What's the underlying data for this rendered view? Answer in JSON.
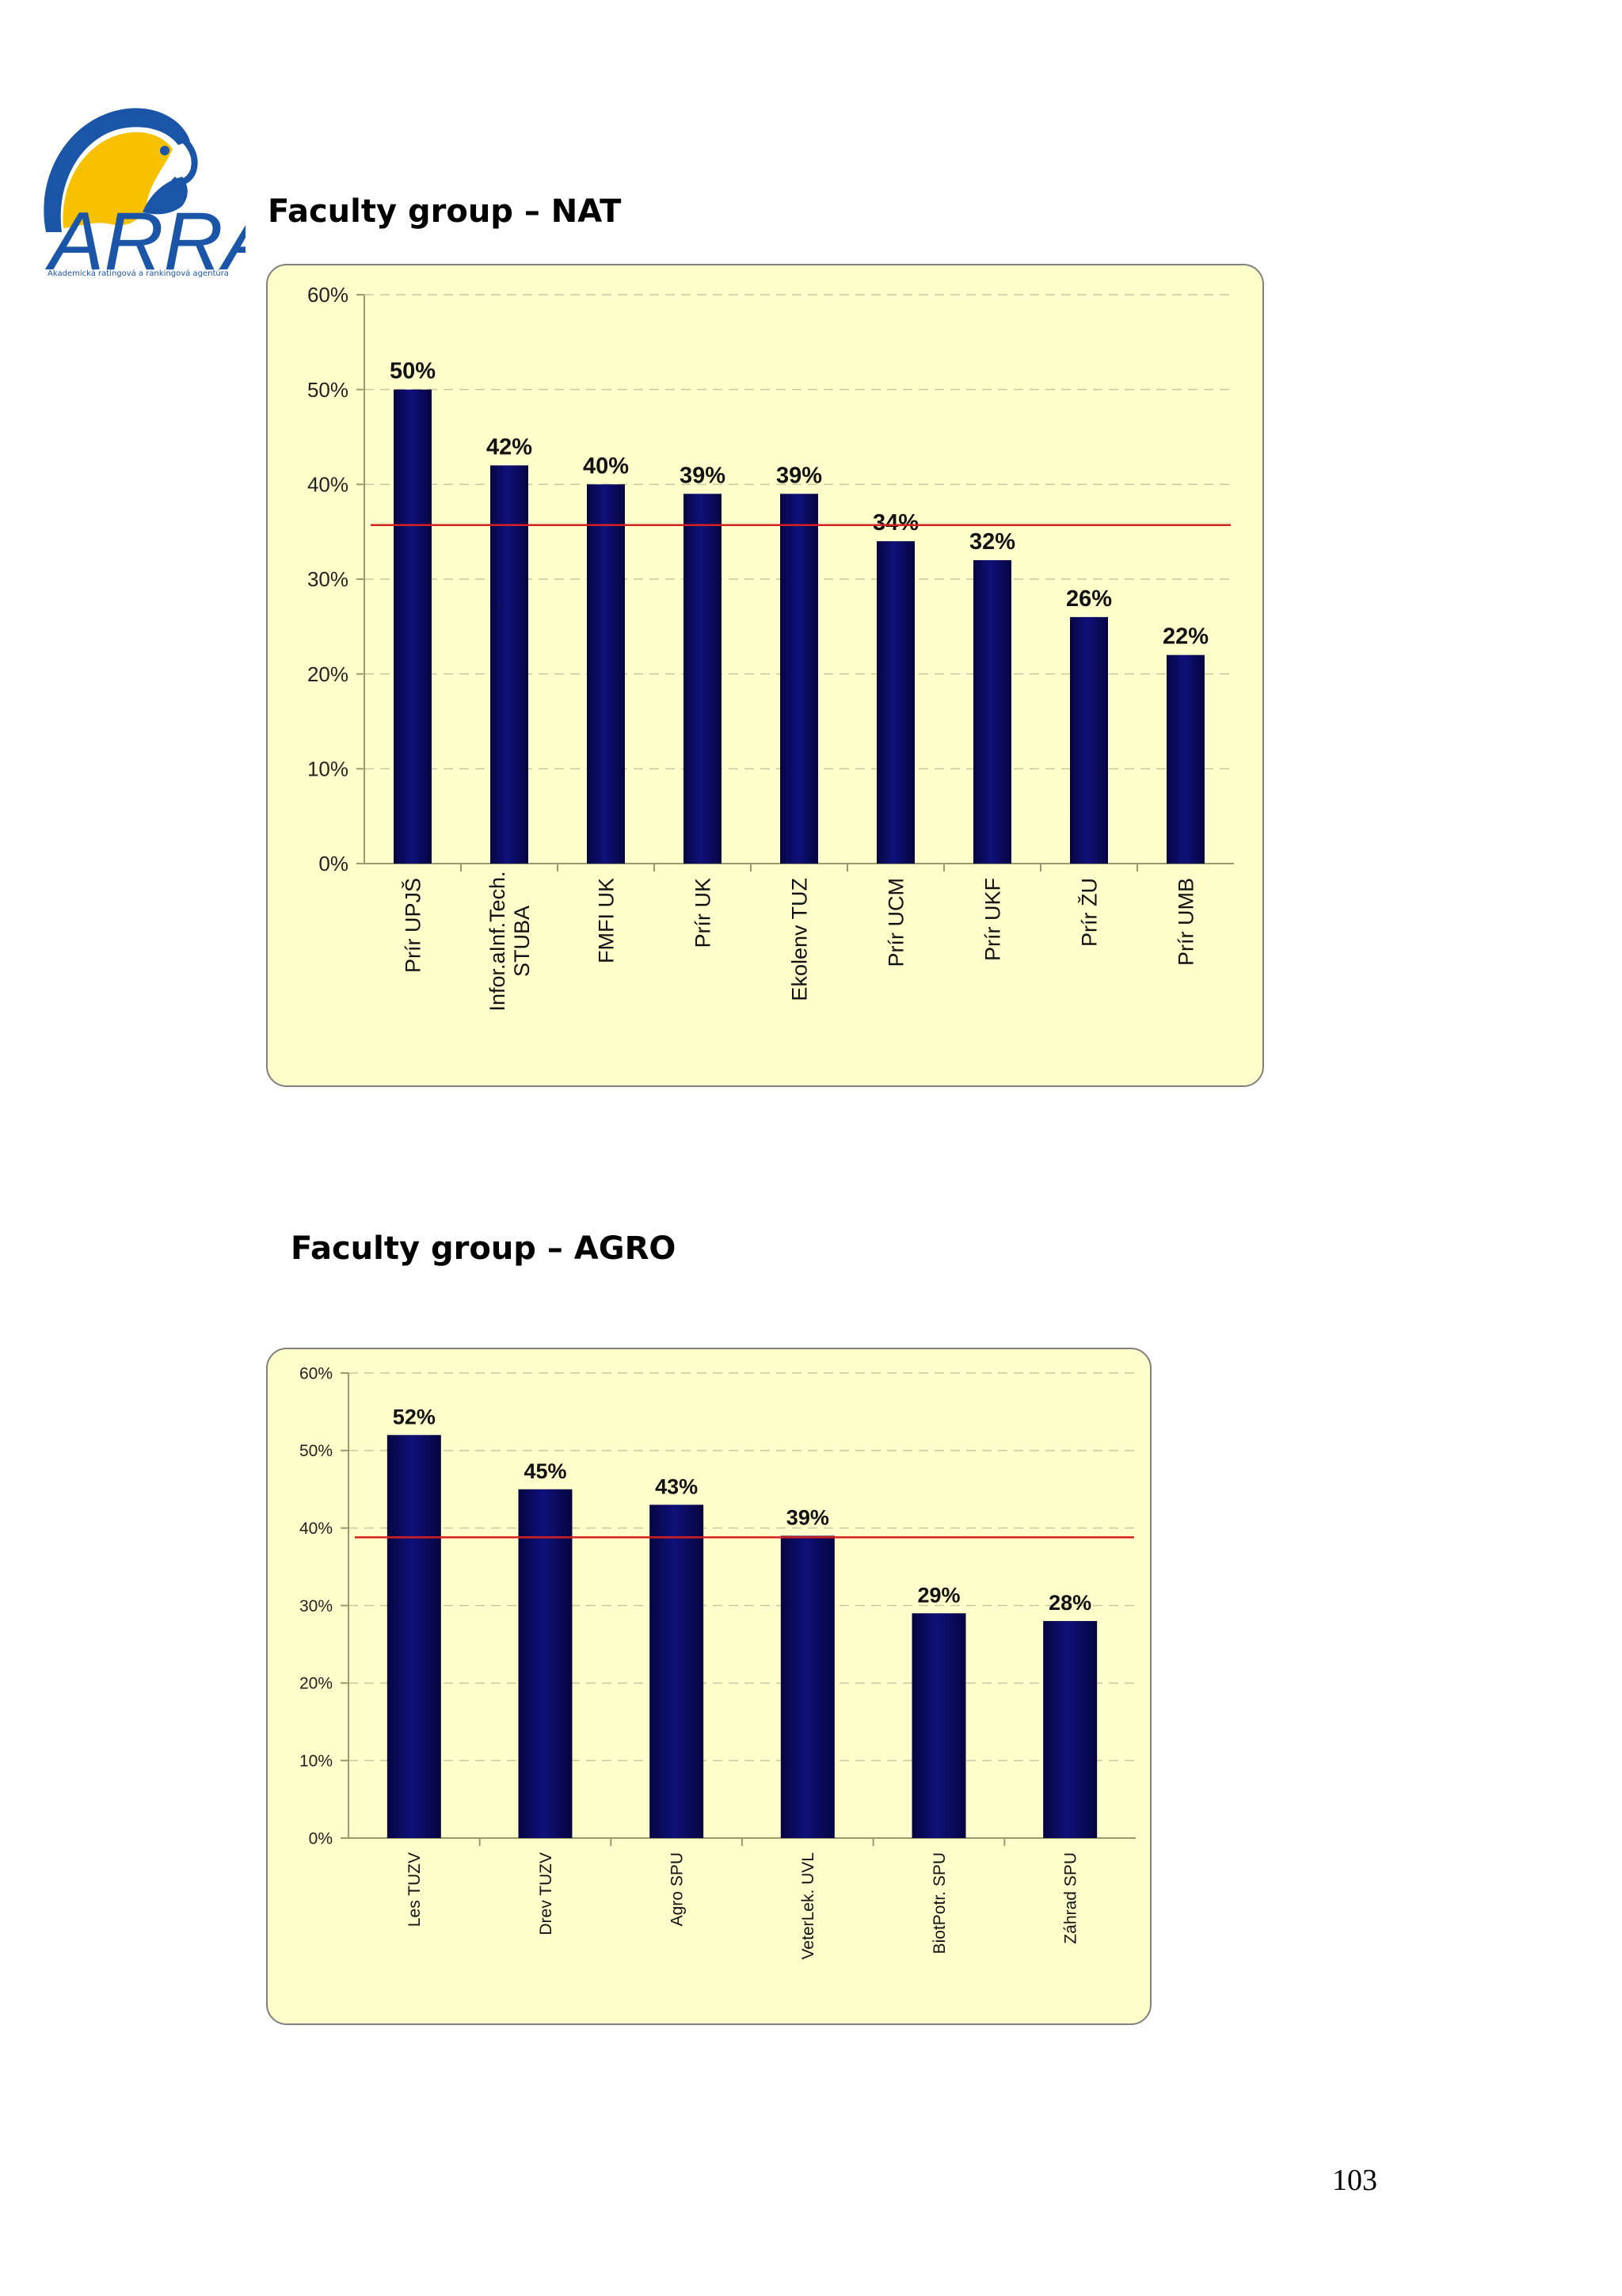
{
  "logo": {
    "text": "ARRA",
    "tagline": "Akademická ratingová a rankingová agentúra",
    "colors": {
      "blue": "#1a55a8",
      "yellow": "#f7c100"
    }
  },
  "sections": [
    {
      "title": "Faculty group – NAT"
    },
    {
      "title": "Faculty group – AGRO"
    }
  ],
  "page": {
    "number": "103"
  },
  "colors": {
    "bar": "#0d0d66",
    "panel": "#ffffcc",
    "average_line": "#d42020",
    "grid": "#c8c8a0"
  },
  "chart_data": [
    {
      "type": "bar",
      "title": "",
      "xlabel": "",
      "ylabel": "",
      "categories": [
        "Prír UPJŠ",
        "Infor.aInf.Tech. STUBA",
        "FMFI UK",
        "Prír UK",
        "Ekolenv TUZ",
        "Prír UCM",
        "Prír UKF",
        "Prír ŽU",
        "Prír UMB"
      ],
      "values": [
        50,
        42,
        40,
        39,
        39,
        34,
        32,
        26,
        22
      ],
      "data_labels": [
        "50%",
        "42%",
        "40%",
        "39%",
        "39%",
        "34%",
        "32%",
        "26%",
        "22%"
      ],
      "yticks": [
        "0%",
        "10%",
        "20%",
        "30%",
        "40%",
        "50%",
        "60%"
      ],
      "ylim": [
        0,
        60
      ],
      "average_line": 35.7,
      "grid": true,
      "legend": "none"
    },
    {
      "type": "bar",
      "title": "",
      "xlabel": "",
      "ylabel": "",
      "categories": [
        "Les TUZV",
        "Drev TUZV",
        "Agro SPU",
        "VeterLek. UVL",
        "BiotPotr. SPU",
        "Záhrad SPU"
      ],
      "values": [
        52,
        45,
        43,
        39,
        29,
        28
      ],
      "data_labels": [
        "52%",
        "45%",
        "43%",
        "39%",
        "29%",
        "28%"
      ],
      "yticks": [
        "0%",
        "10%",
        "20%",
        "30%",
        "40%",
        "50%",
        "60%"
      ],
      "ylim": [
        0,
        60
      ],
      "average_line": 38.8,
      "grid": true,
      "legend": "none"
    }
  ]
}
